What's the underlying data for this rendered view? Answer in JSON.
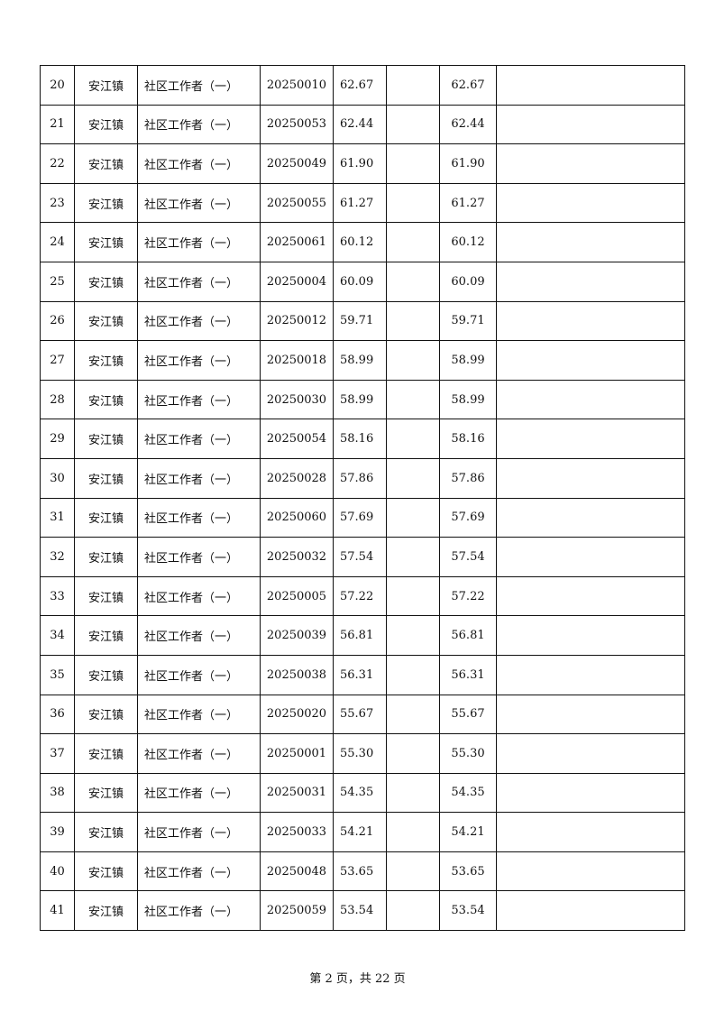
{
  "table": {
    "rows": [
      [
        "20",
        "安江镇",
        "社区工作者（一）",
        "20250010",
        "62.67",
        "",
        "62.67",
        ""
      ],
      [
        "21",
        "安江镇",
        "社区工作者（一）",
        "20250053",
        "62.44",
        "",
        "62.44",
        ""
      ],
      [
        "22",
        "安江镇",
        "社区工作者（一）",
        "20250049",
        "61.90",
        "",
        "61.90",
        ""
      ],
      [
        "23",
        "安江镇",
        "社区工作者（一）",
        "20250055",
        "61.27",
        "",
        "61.27",
        ""
      ],
      [
        "24",
        "安江镇",
        "社区工作者（一）",
        "20250061",
        "60.12",
        "",
        "60.12",
        ""
      ],
      [
        "25",
        "安江镇",
        "社区工作者（一）",
        "20250004",
        "60.09",
        "",
        "60.09",
        ""
      ],
      [
        "26",
        "安江镇",
        "社区工作者（一）",
        "20250012",
        "59.71",
        "",
        "59.71",
        ""
      ],
      [
        "27",
        "安江镇",
        "社区工作者（一）",
        "20250018",
        "58.99",
        "",
        "58.99",
        ""
      ],
      [
        "28",
        "安江镇",
        "社区工作者（一）",
        "20250030",
        "58.99",
        "",
        "58.99",
        ""
      ],
      [
        "29",
        "安江镇",
        "社区工作者（一）",
        "20250054",
        "58.16",
        "",
        "58.16",
        ""
      ],
      [
        "30",
        "安江镇",
        "社区工作者（一）",
        "20250028",
        "57.86",
        "",
        "57.86",
        ""
      ],
      [
        "31",
        "安江镇",
        "社区工作者（一）",
        "20250060",
        "57.69",
        "",
        "57.69",
        ""
      ],
      [
        "32",
        "安江镇",
        "社区工作者（一）",
        "20250032",
        "57.54",
        "",
        "57.54",
        ""
      ],
      [
        "33",
        "安江镇",
        "社区工作者（一）",
        "20250005",
        "57.22",
        "",
        "57.22",
        ""
      ],
      [
        "34",
        "安江镇",
        "社区工作者（一）",
        "20250039",
        "56.81",
        "",
        "56.81",
        ""
      ],
      [
        "35",
        "安江镇",
        "社区工作者（一）",
        "20250038",
        "56.31",
        "",
        "56.31",
        ""
      ],
      [
        "36",
        "安江镇",
        "社区工作者（一）",
        "20250020",
        "55.67",
        "",
        "55.67",
        ""
      ],
      [
        "37",
        "安江镇",
        "社区工作者（一）",
        "20250001",
        "55.30",
        "",
        "55.30",
        ""
      ],
      [
        "38",
        "安江镇",
        "社区工作者（一）",
        "20250031",
        "54.35",
        "",
        "54.35",
        ""
      ],
      [
        "39",
        "安江镇",
        "社区工作者（一）",
        "20250033",
        "54.21",
        "",
        "54.21",
        ""
      ],
      [
        "40",
        "安江镇",
        "社区工作者（一）",
        "20250048",
        "53.65",
        "",
        "53.65",
        ""
      ],
      [
        "41",
        "安江镇",
        "社区工作者（一）",
        "20250059",
        "53.54",
        "",
        "53.54",
        ""
      ]
    ]
  },
  "footer": {
    "page_label": "第 2 页，共 22 页"
  }
}
